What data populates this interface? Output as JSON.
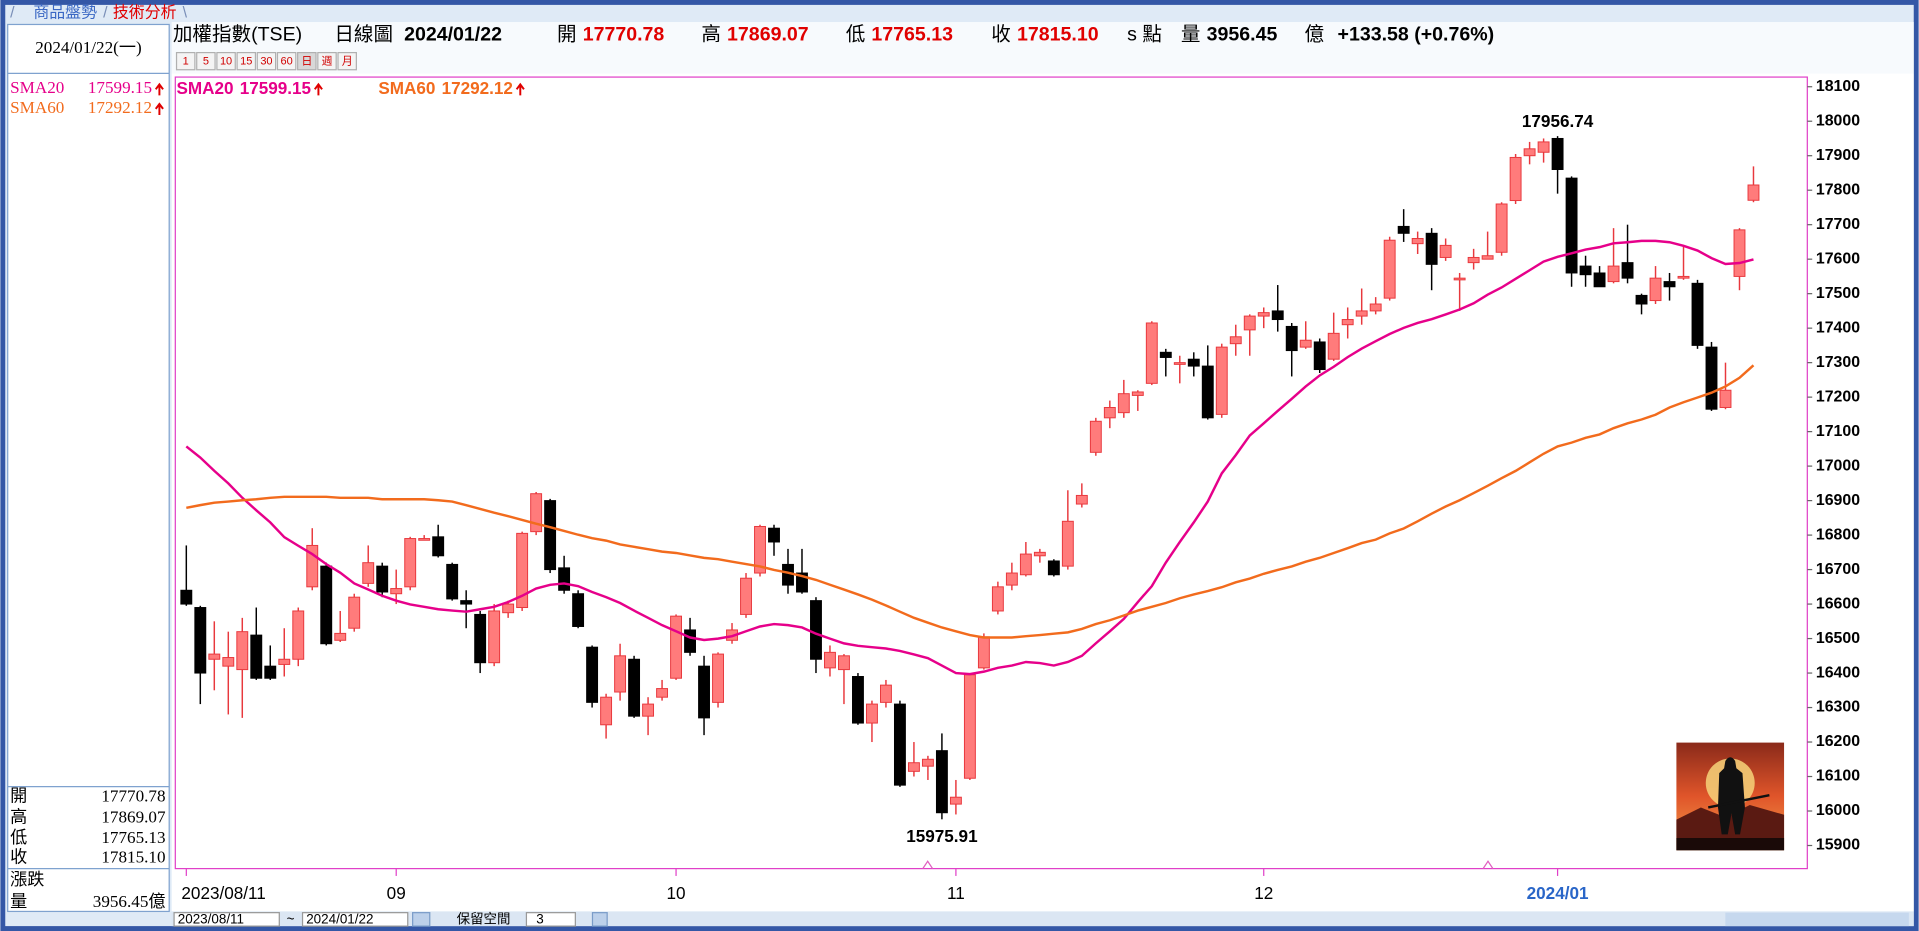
{
  "tabs": [
    "商品盤勢",
    "技術分析"
  ],
  "quote": {
    "title": "加權指數(TSE)",
    "period": "日線圖",
    "date": "2024/01/22",
    "date_weekday": "2024/01/22(一)",
    "open_label": "開",
    "open": "17770.78",
    "high_label": "高",
    "high": "17869.07",
    "low_label": "低",
    "low": "17765.13",
    "close_label": "收",
    "close": "17815.10",
    "unit": "s 點",
    "volume_label": "量",
    "volume": "3956.45",
    "volume_unit": "億",
    "change": "+133.58 (+0.76%)",
    "change_label": "漲跌"
  },
  "periods": [
    "1",
    "5",
    "10",
    "15",
    "30",
    "60",
    "日",
    "週",
    "月"
  ],
  "toolbar": {
    "start": "2023/08/11",
    "separator": "~",
    "end": "2024/01/22",
    "reserve_label": "保留空間",
    "reserve_value": "3"
  },
  "chart_data": {
    "type": "candlestick",
    "categories": [
      "2023/08/11",
      null,
      null,
      null,
      null,
      null,
      null,
      null,
      null,
      null,
      null,
      null,
      null,
      null,
      null,
      "09",
      null,
      null,
      null,
      null,
      null,
      null,
      null,
      null,
      null,
      null,
      null,
      null,
      null,
      null,
      null,
      null,
      null,
      null,
      null,
      "10",
      null,
      null,
      null,
      null,
      null,
      null,
      null,
      null,
      null,
      null,
      null,
      null,
      null,
      null,
      null,
      null,
      null,
      null,
      null,
      "11",
      null,
      null,
      null,
      null,
      null,
      null,
      null,
      null,
      null,
      null,
      null,
      null,
      null,
      null,
      null,
      null,
      null,
      null,
      null,
      null,
      null,
      "12",
      null,
      null,
      null,
      null,
      null,
      null,
      null,
      null,
      null,
      null,
      null,
      null,
      null,
      null,
      null,
      null,
      null,
      null,
      null,
      null,
      "2024/01",
      null,
      null,
      null,
      null,
      null,
      null,
      null,
      null,
      null,
      null,
      null,
      null,
      null,
      null
    ],
    "ohlc": {
      "open": [
        16640,
        16590,
        16440,
        16420,
        16410,
        16510,
        16420,
        16425,
        16440,
        16650,
        16710,
        16495,
        16530,
        16660,
        16710,
        16630,
        16650,
        16785,
        16795,
        16715,
        16610,
        16570,
        16430,
        16575,
        16590,
        16810,
        16900,
        16705,
        16630,
        16475,
        16250,
        16345,
        16440,
        16275,
        16330,
        16385,
        16525,
        16420,
        16315,
        16495,
        16570,
        16690,
        16820,
        16715,
        16690,
        16610,
        16415,
        16410,
        16390,
        16255,
        16315,
        16310,
        16115,
        16130,
        16175,
        16020,
        16095,
        16415,
        16580,
        16655,
        16685,
        16740,
        16725,
        16710,
        16890,
        17040,
        17140,
        17155,
        17205,
        17240,
        17330,
        17295,
        17310,
        17290,
        17150,
        17355,
        17395,
        17435,
        17450,
        17405,
        17345,
        17360,
        17310,
        17410,
        17435,
        17450,
        17487,
        17695,
        17645,
        17675,
        17605,
        17540,
        17590,
        17600,
        17620,
        17770,
        17900,
        17910,
        17950,
        17835,
        17580,
        17560,
        17535,
        17590,
        17495,
        17480,
        17535,
        17545,
        17530,
        17345,
        17170,
        17550,
        17770.78
      ],
      "high": [
        16770,
        16595,
        16550,
        16520,
        16560,
        16590,
        16480,
        16530,
        16590,
        16820,
        16720,
        16580,
        16630,
        16770,
        16720,
        16700,
        16795,
        16800,
        16830,
        16720,
        16640,
        16580,
        16600,
        16610,
        16810,
        16925,
        16905,
        16740,
        16640,
        16480,
        16340,
        16485,
        16450,
        16330,
        16380,
        16570,
        16560,
        16450,
        16460,
        16545,
        16690,
        16830,
        16830,
        16760,
        16760,
        16620,
        16480,
        16455,
        16400,
        16320,
        16380,
        16320,
        16200,
        16160,
        16225,
        16090,
        16400,
        16515,
        16665,
        16720,
        16780,
        16760,
        16730,
        16930,
        16950,
        17140,
        17190,
        17250,
        17220,
        17420,
        17340,
        17320,
        17330,
        17350,
        17355,
        17410,
        17440,
        17460,
        17525,
        17415,
        17420,
        17370,
        17445,
        17460,
        17515,
        17490,
        17665,
        17745,
        17680,
        17690,
        17660,
        17560,
        17630,
        17680,
        17765,
        17905,
        17940,
        17950,
        17956.74,
        17840,
        17610,
        17580,
        17690,
        17700,
        17500,
        17580,
        17560,
        17640,
        17540,
        17360,
        17300,
        17690,
        17869.07
      ],
      "low": [
        16595,
        16310,
        16350,
        16280,
        16270,
        16380,
        16380,
        16390,
        16420,
        16640,
        16480,
        16490,
        16520,
        16650,
        16620,
        16600,
        16640,
        16790,
        16735,
        16610,
        16530,
        16400,
        16420,
        16560,
        16580,
        16800,
        16690,
        16630,
        16530,
        16300,
        16210,
        16320,
        16270,
        16220,
        16320,
        16380,
        16450,
        16220,
        16300,
        16485,
        16560,
        16680,
        16740,
        16630,
        16630,
        16400,
        16390,
        16310,
        16250,
        16200,
        16300,
        16070,
        16100,
        16090,
        15975.91,
        15990,
        16090,
        16410,
        16570,
        16640,
        16680,
        16720,
        16680,
        16700,
        16880,
        17030,
        17110,
        17140,
        17160,
        17235,
        17260,
        17240,
        17260,
        17135,
        17140,
        17320,
        17320,
        17400,
        17390,
        17260,
        17340,
        17270,
        17305,
        17370,
        17410,
        17440,
        17480,
        17650,
        17615,
        17510,
        17595,
        17450,
        17570,
        17600,
        17610,
        17760,
        17875,
        17880,
        17790,
        17520,
        17520,
        17520,
        17530,
        17530,
        17440,
        17470,
        17480,
        17540,
        17340,
        17160,
        17165,
        17510,
        17765.13
      ],
      "close": [
        16600,
        16400,
        16455,
        16445,
        16520,
        16385,
        16385,
        16440,
        16580,
        16770,
        16485,
        16515,
        16620,
        16720,
        16635,
        16645,
        16790,
        16790,
        16740,
        16615,
        16600,
        16430,
        16580,
        16600,
        16805,
        16920,
        16700,
        16640,
        16535,
        16315,
        16330,
        16450,
        16275,
        16310,
        16355,
        16565,
        16460,
        16270,
        16455,
        16525,
        16675,
        16825,
        16780,
        16655,
        16635,
        16440,
        16460,
        16450,
        16255,
        16310,
        16365,
        16075,
        16140,
        16150,
        15995,
        16040,
        16395,
        16505,
        16650,
        16690,
        16745,
        16750,
        16685,
        16840,
        16915,
        17130,
        17170,
        17210,
        17215,
        17415,
        17315,
        17300,
        17290,
        17140,
        17345,
        17375,
        17435,
        17445,
        17425,
        17335,
        17365,
        17280,
        17385,
        17425,
        17450,
        17470,
        17655,
        17675,
        17660,
        17585,
        17640,
        17545,
        17605,
        17610,
        17760,
        17895,
        17920,
        17940,
        17860,
        17560,
        17555,
        17520,
        17580,
        17545,
        17470,
        17545,
        17520,
        17550,
        17350,
        17165,
        17220,
        17685,
        17815.1
      ]
    },
    "up_color": "#ff7b7b",
    "up_edge_color": "#e8383d",
    "down_color": "#000000",
    "series": [
      {
        "name": "SMA20",
        "color": "#e6008a",
        "values": [
          17057,
          17025,
          16986,
          16950,
          16908,
          16872,
          16837,
          16794,
          16769,
          16745,
          16716,
          16691,
          16660,
          16642,
          16624,
          16610,
          16599,
          16592,
          16585,
          16581,
          16578,
          16585,
          16592,
          16606,
          16624,
          16645,
          16656,
          16660,
          16652,
          16635,
          16620,
          16603,
          16581,
          16560,
          16539,
          16521,
          16503,
          16496,
          16500,
          16507,
          16521,
          16535,
          16542,
          16539,
          16532,
          16514,
          16500,
          16486,
          16479,
          16475,
          16471,
          16464,
          16454,
          16443,
          16422,
          16400,
          16397,
          16404,
          16415,
          16422,
          16432,
          16429,
          16422,
          16432,
          16450,
          16486,
          16521,
          16557,
          16606,
          16652,
          16720,
          16780,
          16837,
          16897,
          16979,
          17032,
          17089,
          17124,
          17160,
          17195,
          17231,
          17263,
          17288,
          17316,
          17341,
          17362,
          17383,
          17401,
          17415,
          17426,
          17440,
          17454,
          17472,
          17497,
          17518,
          17543,
          17568,
          17593,
          17607,
          17617,
          17628,
          17635,
          17646,
          17649,
          17653,
          17653,
          17649,
          17639,
          17625,
          17603,
          17586,
          17589,
          17599.15
        ]
      },
      {
        "name": "SMA60",
        "color": "#f26b1d",
        "values": [
          16879,
          16887,
          16894,
          16897,
          16901,
          16904,
          16908,
          16911,
          16911,
          16911,
          16911,
          16908,
          16908,
          16908,
          16904,
          16904,
          16904,
          16904,
          16901,
          16897,
          16887,
          16876,
          16865,
          16855,
          16844,
          16833,
          16823,
          16812,
          16801,
          16791,
          16784,
          16773,
          16766,
          16759,
          16752,
          16748,
          16741,
          16734,
          16730,
          16723,
          16716,
          16709,
          16699,
          16691,
          16681,
          16670,
          16656,
          16642,
          16628,
          16613,
          16596,
          16578,
          16560,
          16546,
          16532,
          16521,
          16510,
          16503,
          16503,
          16503,
          16507,
          16510,
          16514,
          16518,
          16528,
          16542,
          16553,
          16567,
          16581,
          16592,
          16603,
          16617,
          16628,
          16638,
          16649,
          16663,
          16674,
          16688,
          16699,
          16709,
          16723,
          16734,
          16748,
          16762,
          16777,
          16787,
          16805,
          16819,
          16840,
          16862,
          16883,
          16901,
          16922,
          16943,
          16965,
          16986,
          17011,
          17036,
          17057,
          17068,
          17082,
          17092,
          17110,
          17124,
          17135,
          17149,
          17170,
          17185,
          17199,
          17213,
          17231,
          17256,
          17292.12
        ]
      }
    ],
    "ylim": [
      15833,
      18128
    ],
    "yticks": [
      15900,
      16000,
      16100,
      16200,
      16300,
      16400,
      16500,
      16600,
      16700,
      16800,
      16900,
      17000,
      17100,
      17200,
      17300,
      17400,
      17500,
      17600,
      17700,
      17800,
      17900,
      18000,
      18100
    ],
    "grid": false
  }
}
